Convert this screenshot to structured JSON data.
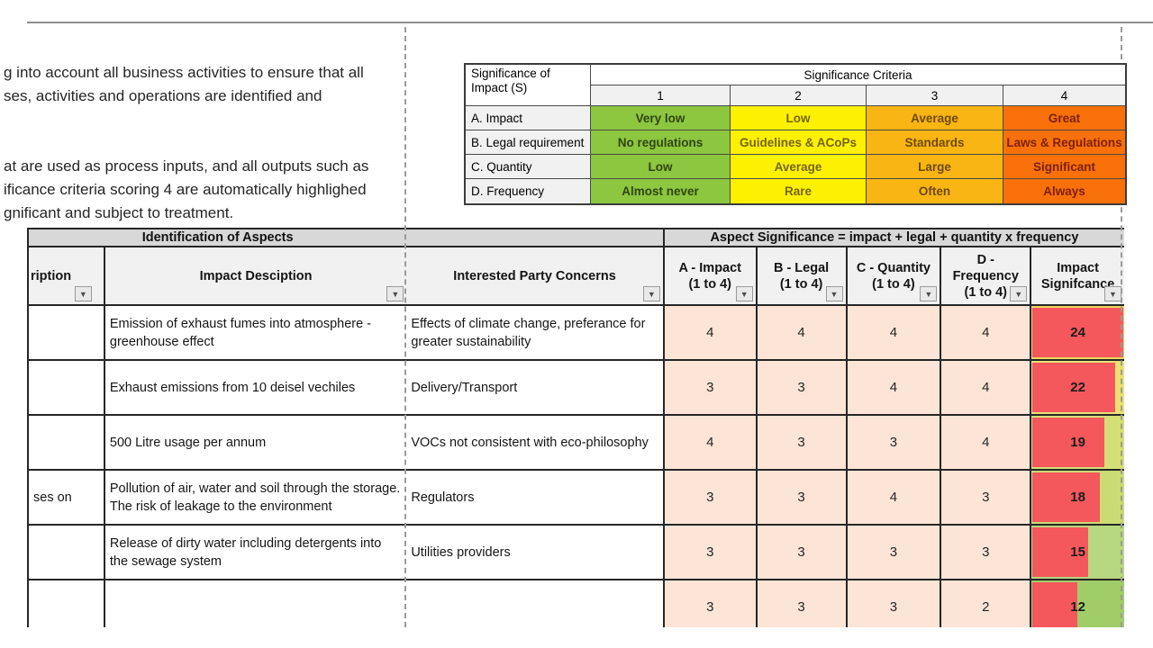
{
  "icons": {
    "filter_dropdown": "▼"
  },
  "intro_text": {
    "para1": [
      "g into account all business activities to ensure that all",
      "ses, activities and operations are identified and"
    ],
    "para2": [
      "at are used as process inputs, and all outputs such as",
      "ificance criteria scoring 4 are automatically highlighed",
      "gnificant and subject to treatment."
    ]
  },
  "criteria": {
    "corner_label_line1": "Significance of",
    "corner_label_line2": "Impact (S)",
    "title": "Significance Criteria",
    "score_headers": [
      "1",
      "2",
      "3",
      "4"
    ],
    "level_colors": [
      "#8dc63f",
      "#fdf000",
      "#f8b513",
      "#f8700a"
    ],
    "level_text_colors": [
      "#2f4612",
      "#76650a",
      "#6e4a03",
      "#7c2104"
    ],
    "rows": [
      {
        "label": "A. Impact",
        "cells": [
          "Very low",
          "Low",
          "Average",
          "Great"
        ]
      },
      {
        "label": "B. Legal requirement",
        "cells": [
          "No regulations",
          "Guidelines & ACoPs",
          "Standards",
          "Laws & Regulations"
        ]
      },
      {
        "label": "C. Quantity",
        "cells": [
          "Low",
          "Average",
          "Large",
          "Significant"
        ]
      },
      {
        "label": "D. Frequency",
        "cells": [
          "Almost never",
          "Rare",
          "Often",
          "Always"
        ]
      }
    ]
  },
  "main": {
    "group_left": "Identification of Aspects",
    "group_right": "Aspect Significance = impact + legal + quantity x  frequency",
    "col_headers": {
      "aspect_fragment": "ription",
      "impact": "Impact Desciption",
      "concerns": "Interested Party Concerns",
      "a_line1": "A - Impact",
      "a_line2": "(1 to 4)",
      "b_line1": "B - Legal",
      "b_line2": "(1 to 4)",
      "c_line1": "C - Quantity",
      "c_line2": "(1 to 4)",
      "d_line1": "D -",
      "d_line2": "Frequency",
      "d_line3": "(1 to 4)",
      "sig_line1": "Impact",
      "sig_line2": "Signifcance"
    },
    "bar_color": "#f4575c",
    "bar_max": 24,
    "rows": [
      {
        "aspect_fragment": "",
        "impact_description": "Emission of exhaust fumes into atmosphere - greenhouse effect",
        "concerns": "Effects of climate change, preferance for greater sustainability",
        "a": 4,
        "b": 4,
        "c": 4,
        "d": 4,
        "significance": 24,
        "sig_bg": "#ecd75e"
      },
      {
        "aspect_fragment": "",
        "impact_description": "Exhaust emissions from 10 deisel vechiles",
        "concerns": "Delivery/Transport",
        "a": 3,
        "b": 3,
        "c": 4,
        "d": 4,
        "significance": 22,
        "sig_bg": "#e8e173"
      },
      {
        "aspect_fragment": "",
        "impact_description": "500 Litre usage per annum",
        "concerns": "VOCs not consistent with eco-philosophy",
        "a": 4,
        "b": 3,
        "c": 3,
        "d": 4,
        "significance": 19,
        "sig_bg": "#d4df76"
      },
      {
        "aspect_fragment": "ses on",
        "impact_description": "Pollution of air, water and soil through the storage. The risk of leakage to the environment",
        "concerns": "Regulators",
        "a": 3,
        "b": 3,
        "c": 4,
        "d": 3,
        "significance": 18,
        "sig_bg": "#cbdb74"
      },
      {
        "aspect_fragment": "",
        "impact_description": "Release of dirty water including detergents into the sewage system",
        "concerns": "Utilities providers",
        "a": 3,
        "b": 3,
        "c": 3,
        "d": 3,
        "significance": 15,
        "sig_bg": "#b7d780"
      },
      {
        "aspect_fragment": "",
        "impact_description": "",
        "concerns": "",
        "a": 3,
        "b": 3,
        "c": 3,
        "d": 2,
        "significance": 12,
        "sig_bg": "#a0cd68"
      }
    ]
  }
}
